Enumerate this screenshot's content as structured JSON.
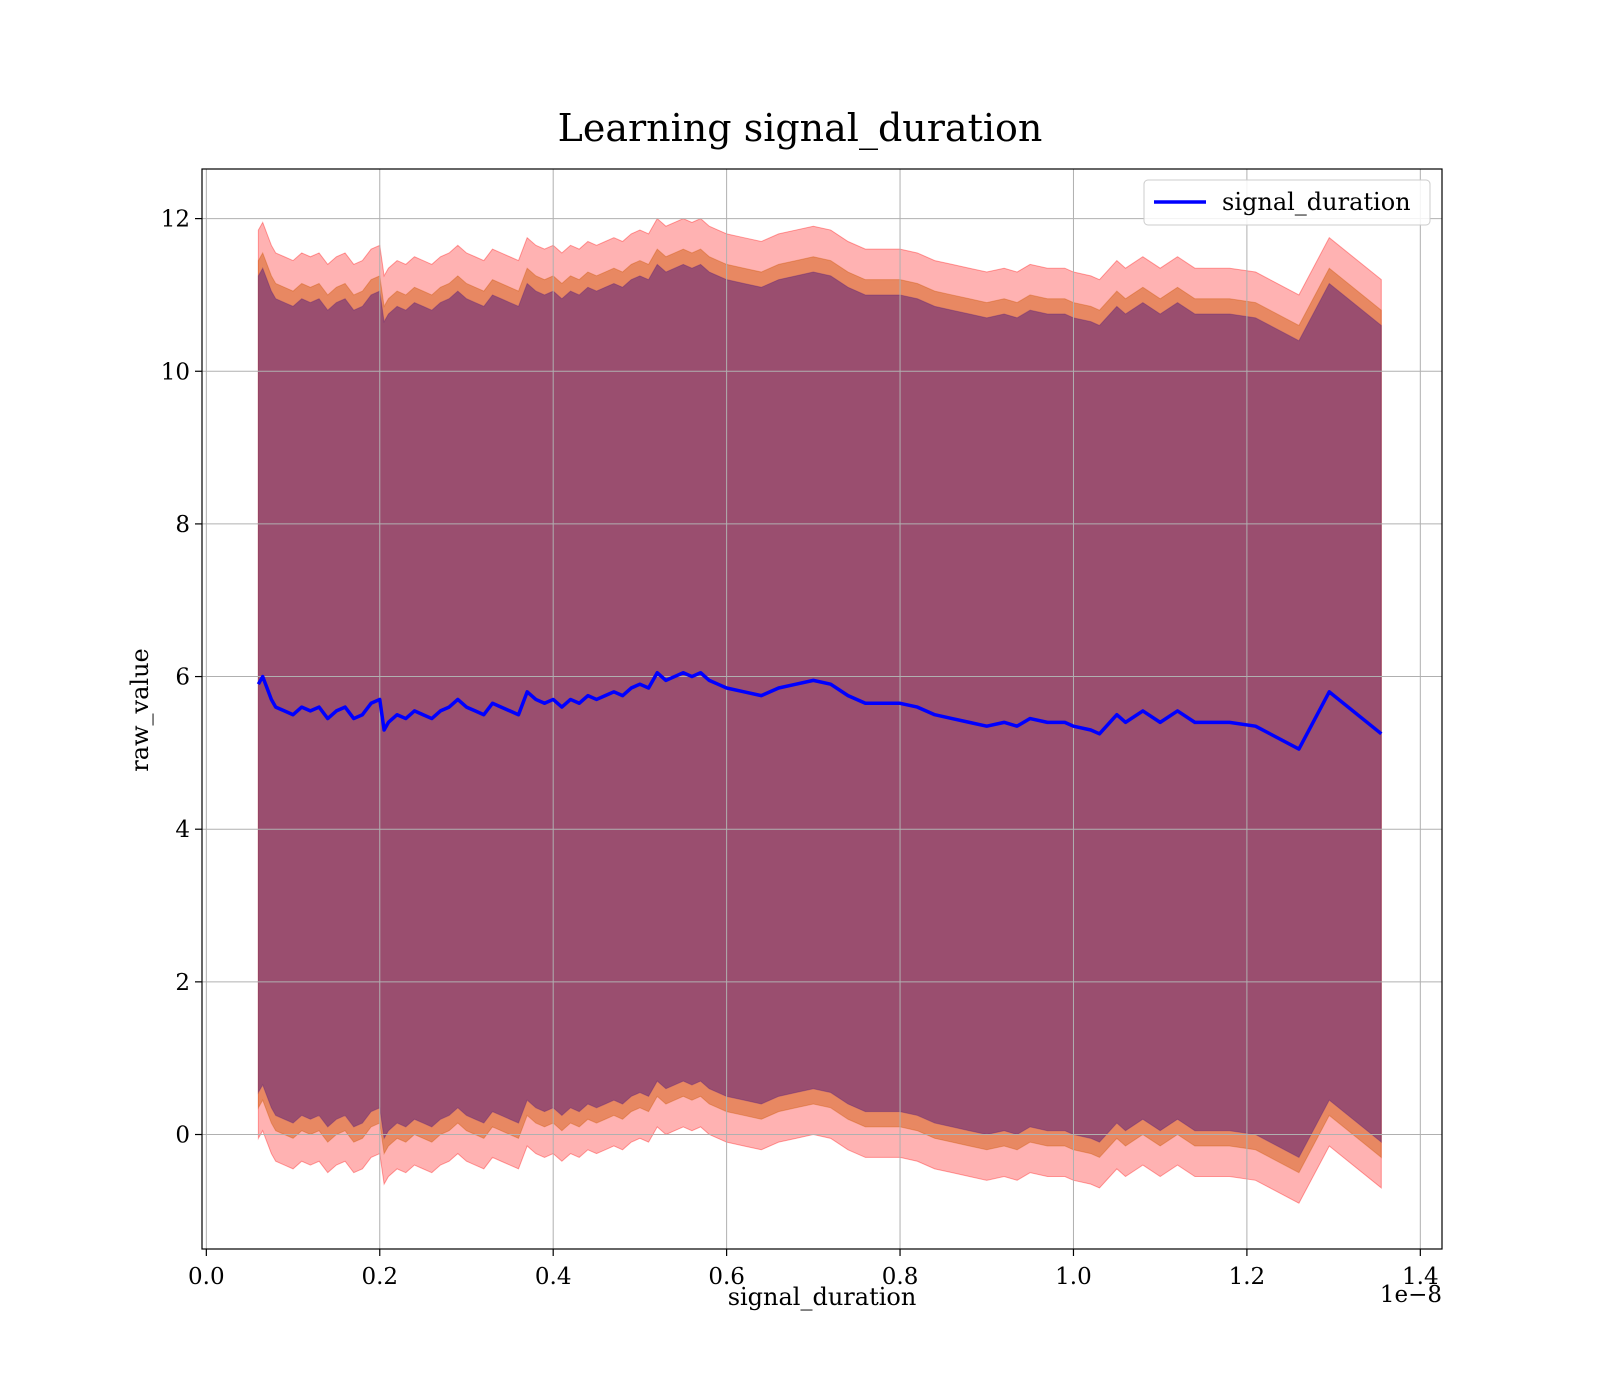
{
  "chart_data": {
    "type": "line",
    "title": "Learning signal_duration",
    "xlabel": "signal_duration",
    "ylabel": "raw_value",
    "x_offset_label": "1e−8",
    "xlim": [
      -0.005,
      1.425
    ],
    "ylim": [
      -1.5,
      12.65
    ],
    "xticks": [
      0.0,
      0.2,
      0.4,
      0.6,
      0.8,
      1.0,
      1.2,
      1.4
    ],
    "xtick_labels": [
      "0.0",
      "0.2",
      "0.4",
      "0.6",
      "0.8",
      "1.0",
      "1.2",
      "1.4"
    ],
    "yticks": [
      0,
      2,
      4,
      6,
      8,
      10,
      12
    ],
    "ytick_labels": [
      "0",
      "2",
      "4",
      "6",
      "8",
      "10",
      "12"
    ],
    "grid": true,
    "legend_position": "top-right",
    "colors": {
      "line": "#0000ff",
      "band_outer": "#ff0000",
      "band_middle": "#cc5500",
      "band_inner": "#5a1f7a",
      "grid": "#b0b0b0"
    },
    "series": [
      {
        "name": "signal_duration",
        "x": [
          0.06,
          0.065,
          0.07,
          0.075,
          0.08,
          0.09,
          0.1,
          0.11,
          0.12,
          0.13,
          0.14,
          0.15,
          0.16,
          0.17,
          0.18,
          0.19,
          0.2,
          0.205,
          0.21,
          0.22,
          0.23,
          0.24,
          0.25,
          0.26,
          0.27,
          0.28,
          0.29,
          0.3,
          0.31,
          0.32,
          0.33,
          0.34,
          0.35,
          0.36,
          0.37,
          0.38,
          0.39,
          0.4,
          0.41,
          0.42,
          0.43,
          0.44,
          0.45,
          0.46,
          0.47,
          0.48,
          0.49,
          0.5,
          0.51,
          0.52,
          0.53,
          0.54,
          0.55,
          0.56,
          0.57,
          0.58,
          0.59,
          0.6,
          0.62,
          0.64,
          0.66,
          0.68,
          0.7,
          0.72,
          0.74,
          0.76,
          0.78,
          0.8,
          0.82,
          0.84,
          0.86,
          0.88,
          0.9,
          0.92,
          0.935,
          0.95,
          0.97,
          0.99,
          1.0,
          1.02,
          1.03,
          1.05,
          1.06,
          1.08,
          1.1,
          1.12,
          1.14,
          1.18,
          1.21,
          1.26,
          1.295,
          1.355
        ],
        "y": [
          5.9,
          6.0,
          5.85,
          5.7,
          5.6,
          5.55,
          5.5,
          5.6,
          5.55,
          5.6,
          5.45,
          5.55,
          5.6,
          5.45,
          5.5,
          5.65,
          5.7,
          5.3,
          5.4,
          5.5,
          5.45,
          5.55,
          5.5,
          5.45,
          5.55,
          5.6,
          5.7,
          5.6,
          5.55,
          5.5,
          5.65,
          5.6,
          5.55,
          5.5,
          5.8,
          5.7,
          5.65,
          5.7,
          5.6,
          5.7,
          5.65,
          5.75,
          5.7,
          5.75,
          5.8,
          5.75,
          5.85,
          5.9,
          5.85,
          6.05,
          5.95,
          6.0,
          6.05,
          6.0,
          6.05,
          5.95,
          5.9,
          5.85,
          5.8,
          5.75,
          5.85,
          5.9,
          5.95,
          5.9,
          5.75,
          5.65,
          5.65,
          5.65,
          5.6,
          5.5,
          5.45,
          5.4,
          5.35,
          5.4,
          5.35,
          5.45,
          5.4,
          5.4,
          5.35,
          5.3,
          5.25,
          5.5,
          5.4,
          5.55,
          5.4,
          5.55,
          5.4,
          5.4,
          5.35,
          5.05,
          5.8,
          5.25
        ]
      }
    ],
    "bands": [
      {
        "role": "outer",
        "half_width": 5.95
      },
      {
        "role": "middle",
        "half_width": 5.55
      },
      {
        "role": "inner",
        "half_width": 5.35
      }
    ]
  }
}
